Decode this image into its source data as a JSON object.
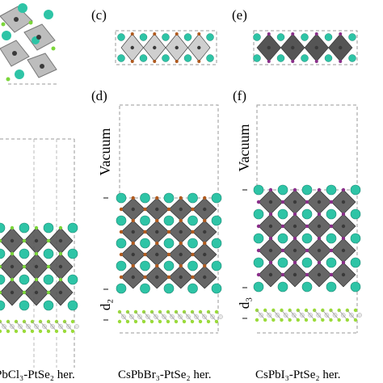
{
  "figure": {
    "panel_labels": [
      "(c)",
      "(d)",
      "(e)",
      "(f)"
    ],
    "vacuum_label": "Vacuum",
    "distance_labels": [
      "d₂",
      "d₃"
    ],
    "captions": {
      "left": "PbCl₃-PtSe₂ her.",
      "middle": "CsPbBr₃-PtSe₂ her.",
      "right": "CsPbI₃-PtSe₂ her."
    }
  },
  "colors": {
    "cs_atom": "#2ec4a6",
    "pb_atom": "#3a3a3a",
    "cl_atom": "#7bd63a",
    "br_atom": "#b05a1e",
    "i_atom": "#8a2f8a",
    "octahedron": "#555555",
    "octahedron_light": "#cfcfcf",
    "pt_atom": "#e8e8e8",
    "se_atom": "#9adb3a",
    "dashed_box": "#999999"
  }
}
